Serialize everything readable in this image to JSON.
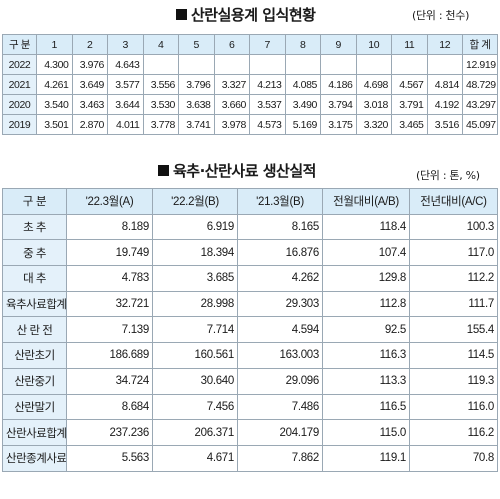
{
  "table1": {
    "title": "산란실용계 입식현황",
    "unit": "(단위 : 천수)",
    "headers": [
      "구 분",
      "1",
      "2",
      "3",
      "4",
      "5",
      "6",
      "7",
      "8",
      "9",
      "10",
      "11",
      "12",
      "합 계"
    ],
    "rows": [
      [
        "2022",
        "4.300",
        "3.976",
        "4.643",
        "",
        "",
        "",
        "",
        "",
        "",
        "",
        "",
        "",
        "12.919"
      ],
      [
        "2021",
        "4.261",
        "3.649",
        "3.577",
        "3.556",
        "3.796",
        "3.327",
        "4.213",
        "4.085",
        "4.186",
        "4.698",
        "4.567",
        "4.814",
        "48.729"
      ],
      [
        "2020",
        "3.540",
        "3.463",
        "3.644",
        "3.530",
        "3.638",
        "3.660",
        "3.537",
        "3.490",
        "3.794",
        "3.018",
        "3.791",
        "4.192",
        "43.297"
      ],
      [
        "2019",
        "3.501",
        "2.870",
        "4.011",
        "3.778",
        "3.741",
        "3.978",
        "4.573",
        "5.169",
        "3.175",
        "3.320",
        "3.465",
        "3.516",
        "45.097"
      ]
    ]
  },
  "table2": {
    "title": "육추·산란사료 생산실적",
    "unit": "(단위 : 톤, %)",
    "headers": [
      "구 분",
      "'22.3월(A)",
      "'22.2월(B)",
      "'21.3월(B)",
      "전월대비(A/B)",
      "전년대비(A/C)"
    ],
    "rows": [
      [
        "초 추",
        "8.189",
        "6.919",
        "8.165",
        "118.4",
        "100.3"
      ],
      [
        "중 추",
        "19.749",
        "18.394",
        "16.876",
        "107.4",
        "117.0"
      ],
      [
        "대 추",
        "4.783",
        "3.685",
        "4.262",
        "129.8",
        "112.2"
      ],
      [
        "육추사료합계",
        "32.721",
        "28.998",
        "29.303",
        "112.8",
        "111.7"
      ],
      [
        "산 란 전",
        "7.139",
        "7.714",
        "4.594",
        "92.5",
        "155.4"
      ],
      [
        "산란초기",
        "186.689",
        "160.561",
        "163.003",
        "116.3",
        "114.5"
      ],
      [
        "산란중기",
        "34.724",
        "30.640",
        "29.096",
        "113.3",
        "119.3"
      ],
      [
        "산란말기",
        "8.684",
        "7.456",
        "7.486",
        "116.5",
        "116.0"
      ],
      [
        "산란사료합계",
        "237.236",
        "206.371",
        "204.179",
        "115.0",
        "116.2"
      ],
      [
        "산란종계사료",
        "5.563",
        "4.671",
        "7.862",
        "119.1",
        "70.8"
      ]
    ]
  }
}
